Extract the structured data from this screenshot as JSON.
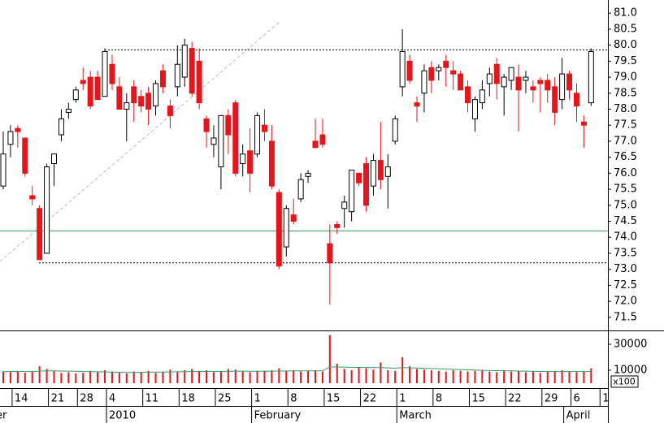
{
  "chart_data": {
    "type": "candlestick",
    "categories": [
      null,
      "14",
      null,
      null,
      null,
      null,
      "21",
      null,
      null,
      null,
      "28",
      null,
      null,
      null,
      "4",
      null,
      null,
      null,
      null,
      "11",
      null,
      null,
      null,
      null,
      "18",
      null,
      null,
      null,
      null,
      "25",
      null,
      null,
      null,
      null,
      "1",
      null,
      null,
      null,
      null,
      "8",
      null,
      null,
      null,
      null,
      "15",
      null,
      null,
      null,
      null,
      "22",
      null,
      null,
      null,
      null,
      "1",
      null,
      null,
      null,
      null,
      "8",
      null,
      null,
      null,
      null,
      "15",
      null,
      null,
      null,
      null,
      "22",
      null,
      null,
      null,
      null,
      "29",
      null,
      null,
      null,
      "6",
      null,
      null,
      null,
      "1"
    ],
    "month_categories": [
      "er",
      null,
      null,
      null,
      null,
      null,
      null,
      null,
      null,
      null,
      null,
      null,
      null,
      null,
      "2010",
      null,
      null,
      null,
      null,
      null,
      null,
      null,
      null,
      null,
      null,
      null,
      null,
      null,
      null,
      null,
      null,
      null,
      null,
      null,
      "February",
      null,
      null,
      null,
      null,
      null,
      null,
      null,
      null,
      null,
      null,
      null,
      null,
      null,
      null,
      null,
      null,
      null,
      null,
      null,
      "March",
      null,
      null,
      null,
      null,
      null,
      null,
      null,
      null,
      null,
      null,
      null,
      null,
      null,
      null,
      null,
      null,
      null,
      null,
      null,
      null,
      null,
      null,
      "April",
      null,
      null,
      null,
      null,
      null
    ],
    "open": [
      75.6,
      76.9,
      77.4,
      77.1,
      75.3,
      74.9,
      73.5,
      76.3,
      77.2,
      77.9,
      78.3,
      78.9,
      79.0,
      79.0,
      78.4,
      79.4,
      78.7,
      78.0,
      78.7,
      78.4,
      78.5,
      78.1,
      79.2,
      78.1,
      78.7,
      79.0,
      79.9,
      79.5,
      77.7,
      76.9,
      76.2,
      77.8,
      78.2,
      76.3,
      76.7,
      76.6,
      77.5,
      77.0,
      75.4,
      73.7,
      74.7,
      75.2,
      75.9,
      77.0,
      77.2,
      73.8,
      74.4,
      74.9,
      74.8,
      76.0,
      76.3,
      75.6,
      76.4,
      75.9,
      77.0,
      78.7,
      79.5,
      78.2,
      78.5,
      79.3,
      79.2,
      79.5,
      79.2,
      79.1,
      78.7,
      77.7,
      78.2,
      78.8,
      79.4,
      78.7,
      78.9,
      79.0,
      78.9,
      78.7,
      78.9,
      78.9,
      78.7,
      78.3,
      79.1,
      78.5,
      77.6,
      78.2,
      null
    ],
    "high": [
      77.3,
      77.5,
      77.5,
      77.1,
      75.6,
      75.0,
      76.3,
      76.6,
      78.0,
      78.2,
      78.7,
      79.3,
      79.2,
      79.2,
      79.9,
      79.7,
      79.0,
      78.5,
      78.9,
      78.6,
      78.7,
      78.9,
      79.4,
      78.3,
      80.0,
      80.2,
      80.1,
      79.9,
      77.8,
      77.5,
      77.8,
      78.0,
      78.3,
      76.9,
      77.4,
      77.9,
      78.0,
      77.5,
      75.5,
      75.0,
      75.2,
      76.0,
      76.1,
      77.7,
      77.7,
      74.4,
      74.5,
      75.3,
      76.1,
      76.0,
      76.5,
      76.6,
      77.6,
      76.6,
      77.8,
      80.5,
      79.7,
      78.4,
      79.4,
      79.5,
      79.4,
      79.7,
      79.5,
      79.2,
      78.9,
      78.4,
      78.9,
      79.3,
      79.6,
      79.1,
      79.2,
      79.4,
      79.2,
      78.9,
      79.0,
      79.1,
      79.0,
      79.6,
      79.2,
      78.8,
      77.8,
      79.9,
      null
    ],
    "low": [
      75.5,
      76.5,
      76.8,
      75.9,
      75.0,
      73.3,
      73.5,
      75.6,
      77.0,
      77.7,
      78.2,
      78.6,
      78.0,
      78.3,
      78.4,
      78.6,
      78.0,
      77.0,
      77.6,
      77.9,
      77.5,
      77.8,
      78.5,
      77.4,
      78.4,
      78.7,
      78.4,
      78.0,
      76.8,
      76.5,
      75.5,
      76.6,
      75.9,
      75.9,
      75.4,
      76.5,
      77.0,
      75.5,
      73.0,
      73.4,
      74.4,
      75.1,
      75.7,
      76.8,
      76.8,
      71.9,
      74.1,
      74.3,
      74.5,
      75.6,
      74.8,
      75.3,
      75.5,
      74.9,
      76.9,
      78.4,
      78.8,
      77.6,
      77.9,
      78.5,
      78.9,
      78.7,
      78.6,
      78.6,
      77.9,
      77.3,
      78.0,
      78.4,
      78.3,
      77.8,
      78.6,
      77.3,
      78.5,
      78.2,
      77.9,
      78.2,
      77.5,
      78.0,
      78.3,
      77.6,
      76.8,
      78.1,
      null
    ],
    "close": [
      76.6,
      77.3,
      77.3,
      76.0,
      75.2,
      73.3,
      76.2,
      76.6,
      77.7,
      78.0,
      78.6,
      78.8,
      78.1,
      78.3,
      79.8,
      78.8,
      78.0,
      78.2,
      78.2,
      78.1,
      78.0,
      78.8,
      78.7,
      77.8,
      79.4,
      80.0,
      78.5,
      78.2,
      77.3,
      77.1,
      77.8,
      77.2,
      76.0,
      76.6,
      76.0,
      77.8,
      77.3,
      75.6,
      73.1,
      74.9,
      74.5,
      75.8,
      76.0,
      76.8,
      76.9,
      73.2,
      74.3,
      75.1,
      76.1,
      75.7,
      75.0,
      76.4,
      75.8,
      76.2,
      77.7,
      79.8,
      78.9,
      78.1,
      79.2,
      78.9,
      79.3,
      79.3,
      79.1,
      78.6,
      78.2,
      78.3,
      78.6,
      79.1,
      78.8,
      79.0,
      79.3,
      78.6,
      79.0,
      78.6,
      78.8,
      78.6,
      77.9,
      79.1,
      78.6,
      78.1,
      77.5,
      79.8,
      null
    ],
    "up_color": "#ffffff",
    "down_color": "#e8141b",
    "ylim": [
      71.09,
      81.41
    ],
    "yticks": [
      71.5,
      {
        "value": 72,
        "label": "72.0"
      },
      72.5,
      {
        "value": 73,
        "label": "73.0"
      },
      73.5,
      {
        "value": 74,
        "label": "74.0"
      },
      74.5,
      {
        "value": 75,
        "label": "75.0"
      },
      75.5,
      {
        "value": 76,
        "label": "76.0"
      },
      76.5,
      {
        "value": 77,
        "label": "77.0"
      },
      77.5,
      {
        "value": 78,
        "label": "78.0"
      },
      78.5,
      {
        "value": 79,
        "label": "79.0"
      },
      79.5,
      {
        "value": 80,
        "label": "80.0"
      },
      80.5,
      {
        "value": 81,
        "label": "81.0"
      }
    ],
    "solid_lines": [
      74.2
    ],
    "solid_line_color": "#3a9a5a",
    "dotted_lines": [
      79.85,
      73.2
    ],
    "volume": [
      9000,
      8500,
      9500,
      8000,
      9000,
      13000,
      11000,
      9500,
      8000,
      8500,
      7500,
      8000,
      9500,
      8500,
      10000,
      9000,
      8000,
      7500,
      9000,
      8500,
      9500,
      8000,
      9000,
      10500,
      9000,
      10000,
      11000,
      9500,
      10000,
      8500,
      9000,
      11000,
      10500,
      9000,
      8500,
      9000,
      9500,
      10000,
      11500,
      9500,
      10000,
      9000,
      9500,
      10000,
      9000,
      37000,
      15000,
      11000,
      10000,
      12000,
      11500,
      10500,
      16000,
      10000,
      9500,
      20000,
      13000,
      11000,
      10500,
      10000,
      9500,
      9000,
      10000,
      9500,
      9000,
      9500,
      10000,
      9000,
      8500,
      10000,
      9000,
      9500,
      8500,
      9000,
      8000,
      9000,
      9500,
      10000,
      9000,
      8500,
      9000,
      11500,
      null
    ],
    "volume_average": [
      9000,
      9000,
      9100,
      9000,
      9000,
      9300,
      9500,
      9500,
      9400,
      9300,
      9200,
      9000,
      8900,
      8800,
      8700,
      8600,
      8400,
      8300,
      8300,
      8400,
      8500,
      8600,
      8600,
      8700,
      8800,
      8900,
      9000,
      9100,
      9100,
      9000,
      9100,
      9200,
      9300,
      9300,
      9200,
      9200,
      9300,
      9300,
      9400,
      9400,
      9500,
      9500,
      9500,
      9500,
      9500,
      12500,
      12500,
      12400,
      12300,
      12200,
      12100,
      12000,
      12000,
      11800,
      11600,
      12000,
      11900,
      11700,
      11500,
      11300,
      11100,
      10900,
      10700,
      10500,
      10300,
      10100,
      9900,
      9800,
      9700,
      9600,
      9500,
      9400,
      9300,
      9200,
      9100,
      9000,
      9000,
      9000,
      9000,
      9000,
      9000,
      9100,
      null
    ],
    "volume_color": "#e8141b",
    "volume_average_color": "#3a9a5a",
    "volume_ylim": [
      -3750,
      40000
    ],
    "volume_yticks": [
      30000,
      10000
    ],
    "volume_unit": "x100"
  }
}
